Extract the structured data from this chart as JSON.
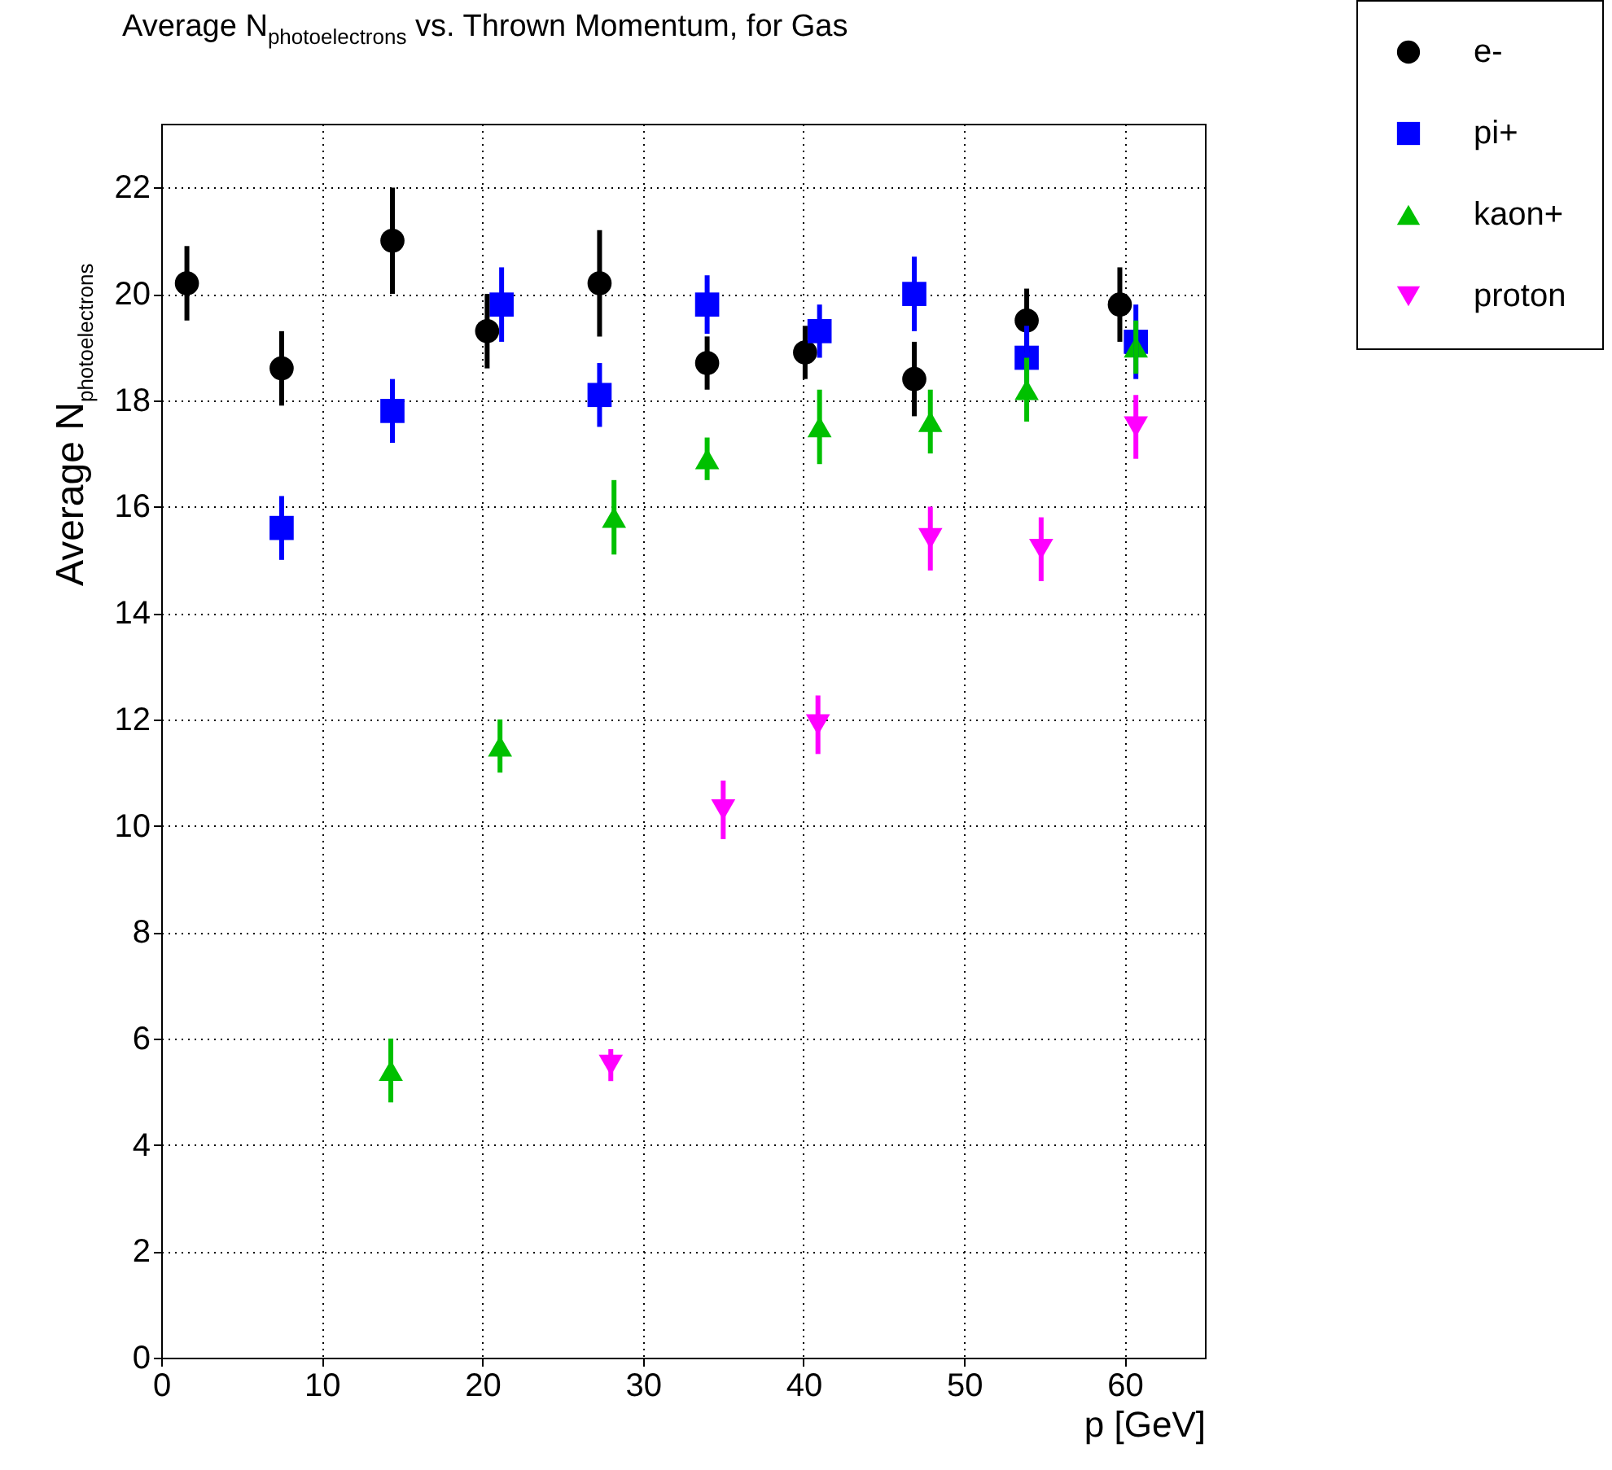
{
  "chart_data": {
    "type": "scatter",
    "title": "Average N$_{photoelectrons}$ vs. Thrown Momentum, for Gas",
    "xlabel": "p [GeV]",
    "ylabel": "Average N$_{photoelectrons}$",
    "xlim": [
      0,
      65
    ],
    "xticks": [
      0,
      10,
      20,
      30,
      40,
      50,
      60
    ],
    "ylim": [
      0,
      23.2
    ],
    "yticks": [
      0,
      2,
      4,
      6,
      8,
      10,
      12,
      14,
      16,
      18,
      20,
      22
    ],
    "grid": true,
    "legend": "top right",
    "series": [
      {
        "name": "e-",
        "color": "#000000",
        "marker": "circle",
        "x": [
          1.6,
          7.5,
          14.4,
          20.3,
          27.3,
          34.0,
          40.1,
          46.9,
          53.9,
          59.7
        ],
        "values": [
          20.2,
          18.6,
          21.0,
          19.3,
          20.2,
          18.7,
          18.9,
          18.4,
          19.5,
          19.8
        ],
        "errors": [
          0.7,
          0.7,
          1.0,
          0.7,
          1.0,
          0.5,
          0.5,
          0.7,
          0.6,
          0.7
        ]
      },
      {
        "name": "pi+",
        "color": "#0000ff",
        "marker": "square",
        "x": [
          7.5,
          14.4,
          21.2,
          27.3,
          34.0,
          41.0,
          46.9,
          53.9,
          60.7
        ],
        "values": [
          15.6,
          17.8,
          19.8,
          18.1,
          19.8,
          19.3,
          20.0,
          18.8,
          19.1
        ],
        "errors": [
          0.6,
          0.6,
          0.7,
          0.6,
          0.55,
          0.5,
          0.7,
          0.6,
          0.7
        ]
      },
      {
        "name": "kaon+",
        "color": "#00c000",
        "marker": "triangle",
        "x": [
          14.3,
          21.1,
          28.2,
          34.0,
          41.0,
          47.9,
          53.9,
          60.7
        ],
        "values": [
          5.4,
          11.5,
          15.8,
          16.9,
          17.5,
          17.6,
          18.2,
          19.0
        ],
        "errors": [
          0.6,
          0.5,
          0.7,
          0.4,
          0.7,
          0.6,
          0.6,
          0.5
        ]
      },
      {
        "name": "proton",
        "color": "#ff00ff",
        "marker": "triangle-down",
        "x": [
          28.0,
          35.0,
          40.9,
          47.9,
          54.8,
          60.7
        ],
        "values": [
          5.5,
          10.3,
          11.9,
          15.4,
          15.2,
          17.5
        ],
        "errors": [
          0.3,
          0.55,
          0.55,
          0.6,
          0.6,
          0.6
        ]
      }
    ]
  }
}
